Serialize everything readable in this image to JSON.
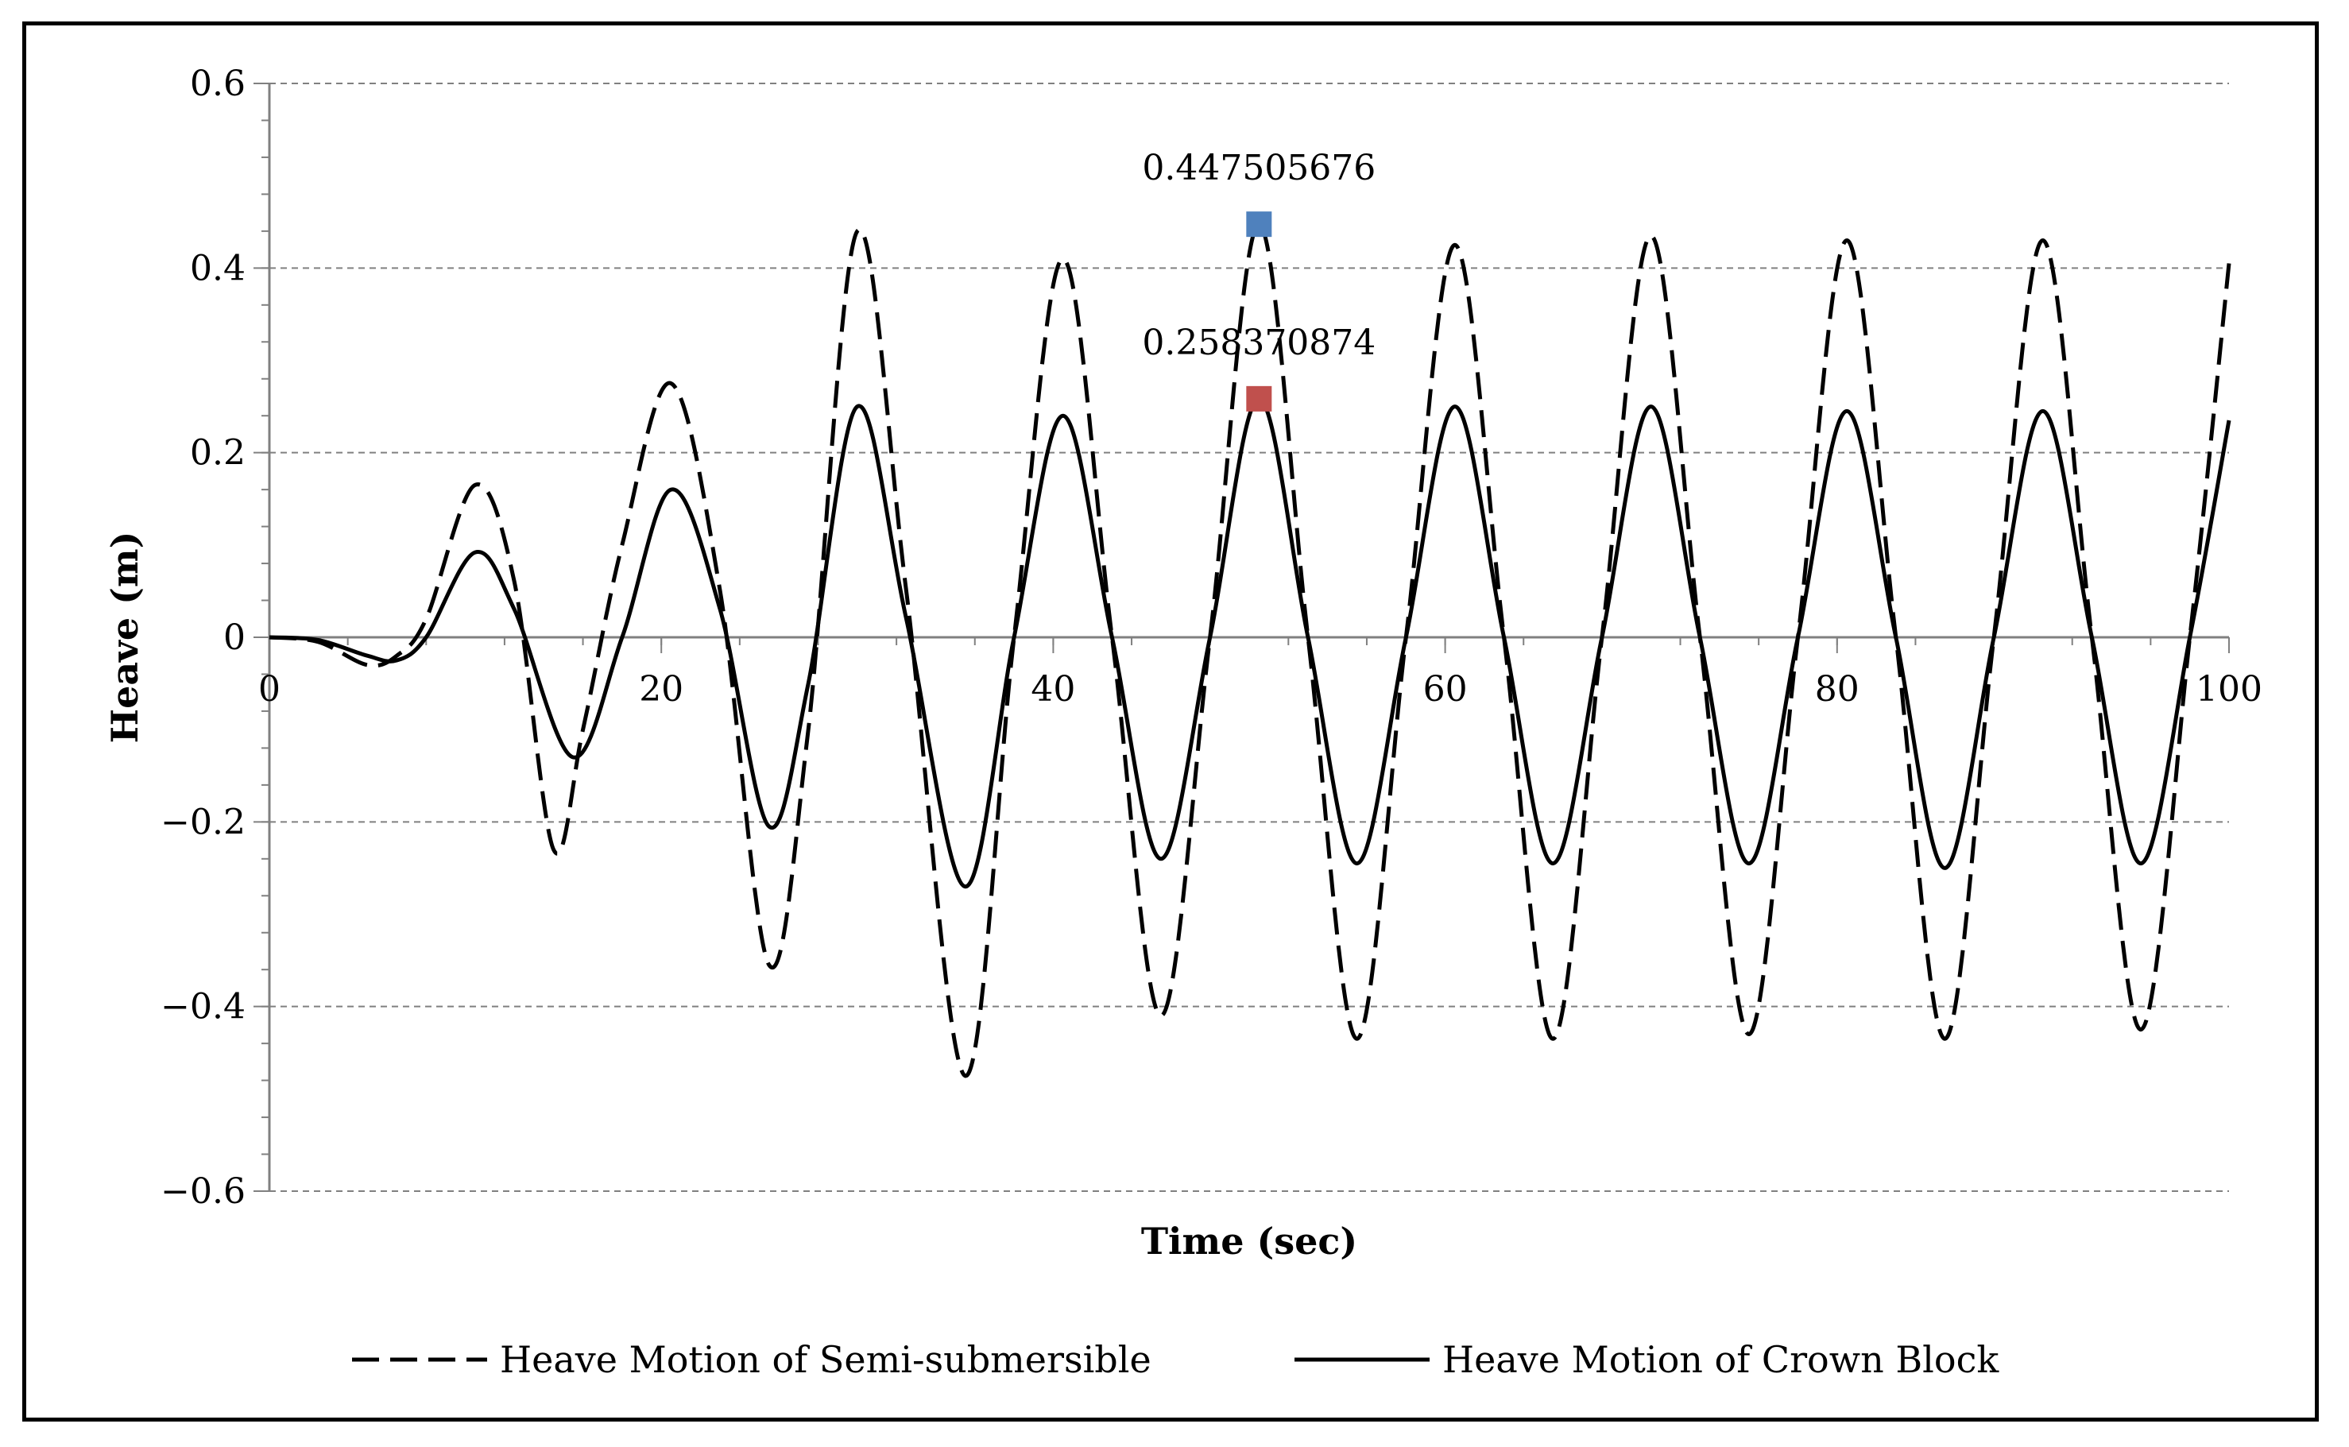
{
  "chart_data": {
    "type": "line",
    "title": "",
    "xlabel": "Time (sec)",
    "ylabel": "Heave (m)",
    "xlim": [
      0,
      100
    ],
    "ylim": [
      -0.6,
      0.6
    ],
    "xticks": [
      0,
      20,
      40,
      60,
      80,
      100
    ],
    "yticks": [
      -0.6,
      -0.4,
      -0.2,
      0,
      0.2,
      0.4,
      0.6
    ],
    "ytick_labels": [
      "−0.6",
      "−0.4",
      "−0.2",
      "0",
      "0.2",
      "0.4",
      "0.6"
    ],
    "xtick_labels": [
      "0",
      "20",
      "40",
      "60",
      "80",
      "100"
    ],
    "grid": "horizontal dashed",
    "legend_position": "bottom",
    "series": [
      {
        "name": "Heave Motion of Semi-submersible",
        "style": "dashed",
        "color": "#000000",
        "x": [
          0,
          2.5,
          5,
          6.5,
          8,
          10.5,
          12.5,
          14.5,
          16,
          18,
          20.5,
          23,
          25.5,
          27.5,
          30,
          32.5,
          35.5,
          38,
          40.5,
          43,
          45.5,
          48,
          50.5,
          53,
          55.5,
          58,
          60.5,
          63,
          65.5,
          68,
          70.5,
          73,
          75.5,
          78,
          80.5,
          83,
          85.5,
          88,
          90.5,
          93,
          95.5,
          98,
          100
        ],
        "y": [
          0,
          -0.005,
          -0.03,
          -0.02,
          0.02,
          0.165,
          0.06,
          -0.23,
          -0.1,
          0.1,
          0.275,
          0.05,
          -0.355,
          -0.1,
          0.44,
          0.05,
          -0.475,
          0.0,
          0.41,
          0.0,
          -0.41,
          0.0,
          0.4475,
          0.0,
          -0.435,
          0.0,
          0.425,
          0.0,
          -0.435,
          0.0,
          0.435,
          0.0,
          -0.43,
          0.0,
          0.43,
          0.0,
          -0.435,
          0.0,
          0.43,
          0.0,
          -0.425,
          0.0,
          0.405
        ]
      },
      {
        "name": "Heave Motion of Crown Block",
        "style": "solid",
        "color": "#000000",
        "x": [
          0,
          2.5,
          5,
          6.5,
          8,
          10.5,
          12.5,
          15.5,
          18,
          20.5,
          23,
          25.5,
          27.5,
          30,
          32.5,
          35.5,
          38,
          40.5,
          43,
          45.5,
          48,
          50.5,
          53,
          55.5,
          58,
          60.5,
          63,
          65.5,
          68,
          70.5,
          73,
          75.5,
          78,
          80.5,
          83,
          85.5,
          88,
          90.5,
          93,
          95.5,
          98,
          100
        ],
        "y": [
          0,
          -0.003,
          -0.02,
          -0.025,
          0.0,
          0.092,
          0.03,
          -0.13,
          0.0,
          0.16,
          0.03,
          -0.205,
          -0.05,
          0.25,
          0.02,
          -0.27,
          0.0,
          0.24,
          0.0,
          -0.24,
          0.0,
          0.2584,
          0.0,
          -0.245,
          0.0,
          0.25,
          0.0,
          -0.245,
          0.0,
          0.25,
          0.0,
          -0.245,
          0.0,
          0.245,
          0.0,
          -0.25,
          0.0,
          0.245,
          0.0,
          -0.245,
          0.0,
          0.235
        ]
      }
    ],
    "annotations": [
      {
        "x": 50.5,
        "y": 0.447505676,
        "label": "0.447505676",
        "marker_color": "#4F81BD"
      },
      {
        "x": 50.5,
        "y": 0.258370874,
        "label": "0.258370874",
        "marker_color": "#C0504D"
      }
    ]
  }
}
